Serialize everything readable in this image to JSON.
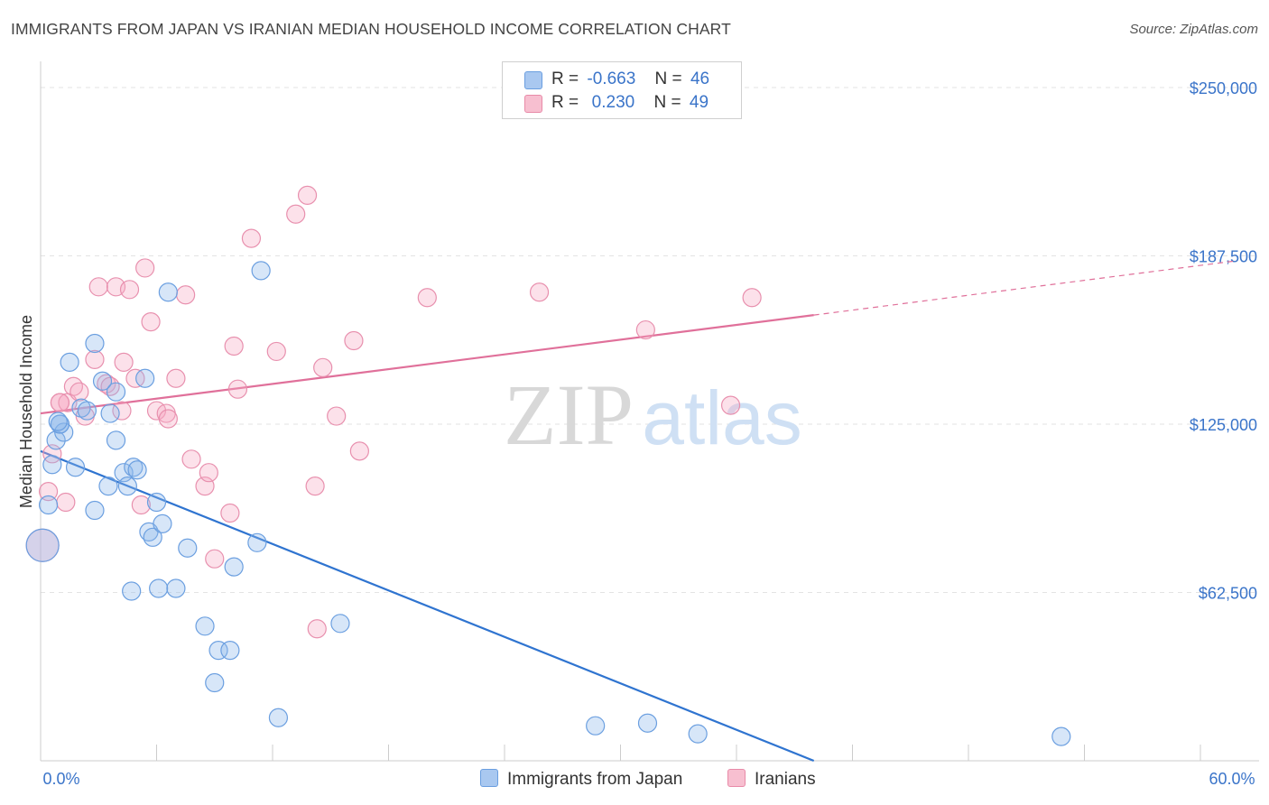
{
  "title": "IMMIGRANTS FROM JAPAN VS IRANIAN MEDIAN HOUSEHOLD INCOME CORRELATION CHART",
  "source": "Source: ZipAtlas.com",
  "watermark": {
    "zip": "ZIP",
    "atlas": "atlas"
  },
  "legend": {
    "rows": [
      {
        "r_label": "R =",
        "r_value": "-0.663",
        "n_label": "N =",
        "n_value": "46",
        "color": "#a9c8f0",
        "border": "#6a9ee0"
      },
      {
        "r_label": "R =",
        "r_value": " 0.230",
        "n_label": "N =",
        "n_value": "49",
        "color": "#f7bfd0",
        "border": "#e88aa8"
      }
    ]
  },
  "bottom_legend": {
    "japan": "Immigrants from Japan",
    "iranians": "Iranians"
  },
  "colors": {
    "japan_fill": "rgba(140,182,236,0.35)",
    "japan_stroke": "#6b9fe0",
    "japan_line": "#2f74d0",
    "iran_fill": "rgba(245,170,195,0.35)",
    "iran_stroke": "#e890ae",
    "iran_line": "#e0709a",
    "tick_text": "#3a74c9",
    "grid": "#e3e3e3"
  },
  "chart_data": {
    "type": "scatter",
    "title": "IMMIGRANTS FROM JAPAN VS IRANIAN MEDIAN HOUSEHOLD INCOME CORRELATION CHART",
    "xlabel": "",
    "ylabel": "Median Household Income",
    "xlim": [
      0,
      60
    ],
    "ylim": [
      0,
      250000
    ],
    "x_tick_labels": [
      "0.0%",
      "60.0%"
    ],
    "y_ticks": [
      62500,
      125000,
      187500,
      250000
    ],
    "y_tick_labels": [
      "$62,500",
      "$125,000",
      "$187,500",
      "$250,000"
    ],
    "grid": true,
    "legend_position": "top-center",
    "series": [
      {
        "name": "Immigrants from Japan",
        "r": -0.663,
        "n": 46,
        "points": [
          [
            0.1,
            80000,
            1.8
          ],
          [
            0.4,
            95000,
            1
          ],
          [
            0.6,
            110000,
            1
          ],
          [
            0.8,
            119000,
            1
          ],
          [
            1.0,
            125000,
            1
          ],
          [
            1.2,
            122000,
            1
          ],
          [
            1.5,
            148000,
            1
          ],
          [
            1.8,
            109000,
            1
          ],
          [
            2.1,
            131000,
            1
          ],
          [
            2.4,
            130000,
            1
          ],
          [
            2.8,
            93000,
            1
          ],
          [
            2.8,
            155000,
            1
          ],
          [
            3.2,
            141000,
            1
          ],
          [
            3.5,
            102000,
            1
          ],
          [
            3.6,
            129000,
            1
          ],
          [
            3.9,
            137000,
            1
          ],
          [
            3.9,
            119000,
            1
          ],
          [
            4.3,
            107000,
            1
          ],
          [
            4.5,
            102000,
            1
          ],
          [
            4.7,
            63000,
            1
          ],
          [
            4.8,
            109000,
            1
          ],
          [
            5.0,
            108000,
            1
          ],
          [
            5.4,
            142000,
            1
          ],
          [
            5.6,
            85000,
            1
          ],
          [
            5.8,
            83000,
            1
          ],
          [
            6.0,
            96000,
            1
          ],
          [
            6.1,
            64000,
            1
          ],
          [
            6.3,
            88000,
            1
          ],
          [
            6.6,
            174000,
            1
          ],
          [
            7.0,
            64000,
            1
          ],
          [
            7.6,
            79000,
            1
          ],
          [
            8.5,
            50000,
            1
          ],
          [
            9.2,
            41000,
            1
          ],
          [
            9.0,
            29000,
            1
          ],
          [
            9.8,
            41000,
            1
          ],
          [
            10.0,
            72000,
            1
          ],
          [
            11.2,
            81000,
            1
          ],
          [
            11.4,
            182000,
            1
          ],
          [
            12.3,
            16000,
            1
          ],
          [
            15.5,
            51000,
            1
          ],
          [
            28.7,
            13000,
            1
          ],
          [
            31.4,
            14000,
            1
          ],
          [
            34.0,
            10000,
            1
          ],
          [
            52.8,
            9000,
            1
          ],
          [
            1.0,
            125000,
            1
          ],
          [
            0.9,
            126000,
            1
          ]
        ],
        "trend": {
          "x1": 0,
          "y1": 115000,
          "x2": 40,
          "y2": 0
        }
      },
      {
        "name": "Iranians",
        "r": 0.23,
        "n": 49,
        "points": [
          [
            0.1,
            80000,
            1.8
          ],
          [
            0.4,
            100000,
            1
          ],
          [
            0.6,
            114000,
            1
          ],
          [
            1.0,
            133000,
            1
          ],
          [
            1.3,
            96000,
            1
          ],
          [
            1.4,
            133000,
            1
          ],
          [
            1.7,
            139000,
            1
          ],
          [
            2.0,
            137000,
            1
          ],
          [
            2.3,
            128000,
            1
          ],
          [
            2.8,
            149000,
            1
          ],
          [
            3.0,
            176000,
            1
          ],
          [
            3.4,
            140000,
            1
          ],
          [
            3.6,
            139000,
            1
          ],
          [
            3.9,
            176000,
            1
          ],
          [
            4.2,
            130000,
            1
          ],
          [
            4.3,
            148000,
            1
          ],
          [
            4.6,
            175000,
            1
          ],
          [
            4.9,
            142000,
            1
          ],
          [
            5.2,
            95000,
            1
          ],
          [
            5.4,
            183000,
            1
          ],
          [
            5.7,
            163000,
            1
          ],
          [
            6.0,
            130000,
            1
          ],
          [
            6.5,
            129000,
            1
          ],
          [
            6.6,
            127000,
            1
          ],
          [
            7.0,
            142000,
            1
          ],
          [
            7.5,
            173000,
            1
          ],
          [
            7.8,
            112000,
            1
          ],
          [
            8.5,
            102000,
            1
          ],
          [
            8.7,
            107000,
            1
          ],
          [
            9.0,
            75000,
            1
          ],
          [
            9.8,
            92000,
            1
          ],
          [
            10.0,
            154000,
            1
          ],
          [
            10.2,
            138000,
            1
          ],
          [
            10.9,
            194000,
            1
          ],
          [
            12.2,
            152000,
            1
          ],
          [
            13.2,
            203000,
            1
          ],
          [
            13.8,
            210000,
            1
          ],
          [
            14.2,
            102000,
            1
          ],
          [
            14.3,
            49000,
            1
          ],
          [
            14.6,
            146000,
            1
          ],
          [
            15.3,
            128000,
            1
          ],
          [
            16.2,
            156000,
            1
          ],
          [
            16.5,
            115000,
            1
          ],
          [
            20.0,
            172000,
            1
          ],
          [
            25.8,
            174000,
            1
          ],
          [
            31.3,
            160000,
            1
          ],
          [
            35.7,
            132000,
            1
          ],
          [
            36.8,
            172000,
            1
          ],
          [
            1.0,
            133000,
            1
          ]
        ],
        "trend": {
          "x1": 0,
          "y1": 129000,
          "x2": 40,
          "y2": 165500,
          "dash_to_x": 60,
          "dash_to_y": 185000
        }
      }
    ]
  }
}
